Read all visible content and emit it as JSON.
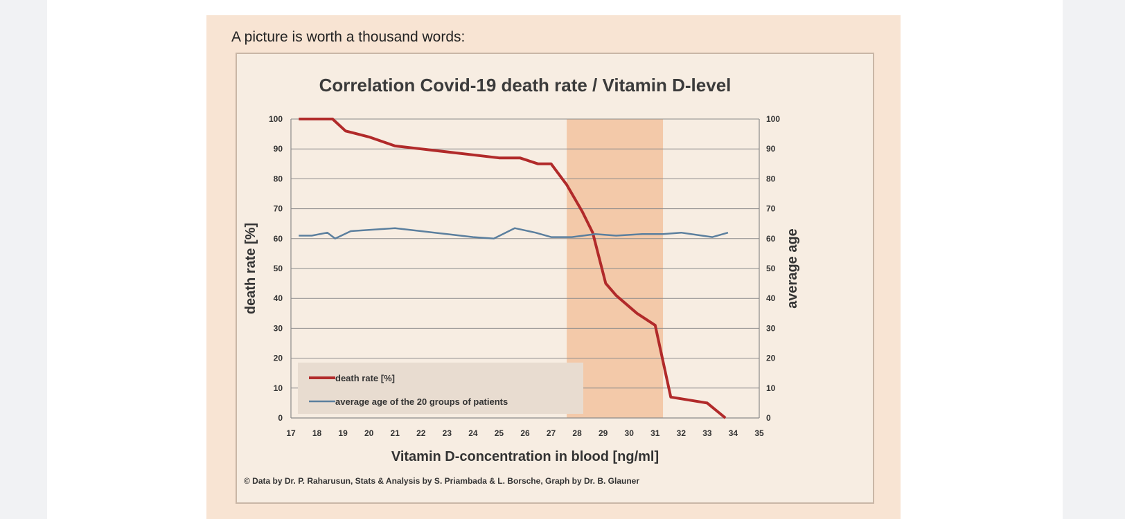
{
  "intro_text": "A picture is worth a thousand words:",
  "credit_text": "© Data by Dr. P. Raharusun, Stats & Analysis by S. Priambada & L. Borsche, Graph by Dr. B. Glauner",
  "colors": {
    "background": "#f8e4d3",
    "plot_background": "#f7ede2",
    "highlight_band": "#f3c9a9",
    "death_rate_line": "#b12a2a",
    "average_age_line": "#5b7f9e",
    "legend_box": "#e8dcd0"
  },
  "chart_data": {
    "type": "line",
    "title": "Correlation Covid-19 death rate / Vitamin D-level",
    "xlabel": "Vitamin D-concentration in blood [ng/ml]",
    "ylabel": "death rate [%]",
    "y2label": "average age",
    "xlim": [
      17,
      35
    ],
    "ylim": [
      0,
      100
    ],
    "y2lim": [
      0,
      100
    ],
    "x_ticks": [
      17,
      18,
      19,
      20,
      21,
      22,
      23,
      24,
      25,
      26,
      27,
      28,
      29,
      30,
      31,
      32,
      33,
      34,
      35
    ],
    "y_ticks": [
      0,
      10,
      20,
      30,
      40,
      50,
      60,
      70,
      80,
      90,
      100
    ],
    "grid": "horizontal",
    "highlight_band": {
      "x_range": [
        27.6,
        31.3
      ]
    },
    "legend": {
      "position": "bottom-left",
      "entries": [
        "death rate [%]",
        "average age of the 20 groups of patients"
      ]
    },
    "series": [
      {
        "name": "death rate [%]",
        "axis": "left",
        "color": "#b12a2a",
        "x": [
          17.3,
          18.6,
          19.1,
          20.0,
          21.0,
          22.0,
          23.0,
          24.0,
          25.0,
          25.8,
          26.5,
          27.0,
          27.6,
          28.2,
          28.6,
          29.1,
          29.5,
          30.3,
          31.0,
          31.6,
          33.0,
          33.7
        ],
        "values": [
          100,
          100,
          96,
          94,
          91,
          90,
          89,
          88,
          87,
          87,
          85,
          85,
          78,
          69,
          62,
          45,
          41,
          35,
          31,
          7,
          5,
          0
        ]
      },
      {
        "name": "average age of the 20 groups of patients",
        "axis": "right",
        "color": "#5b7f9e",
        "x": [
          17.3,
          17.8,
          18.4,
          18.7,
          19.3,
          20.2,
          21.0,
          22.0,
          23.0,
          24.0,
          24.8,
          25.6,
          26.4,
          27.0,
          27.8,
          28.7,
          29.5,
          30.5,
          31.3,
          32.0,
          32.8,
          33.2,
          33.8
        ],
        "values": [
          61,
          61,
          62,
          60,
          62.5,
          63,
          63.5,
          62.5,
          61.5,
          60.5,
          60,
          63.5,
          62,
          60.5,
          60.5,
          61.5,
          61,
          61.5,
          61.5,
          62,
          61,
          60.5,
          62
        ]
      }
    ]
  }
}
